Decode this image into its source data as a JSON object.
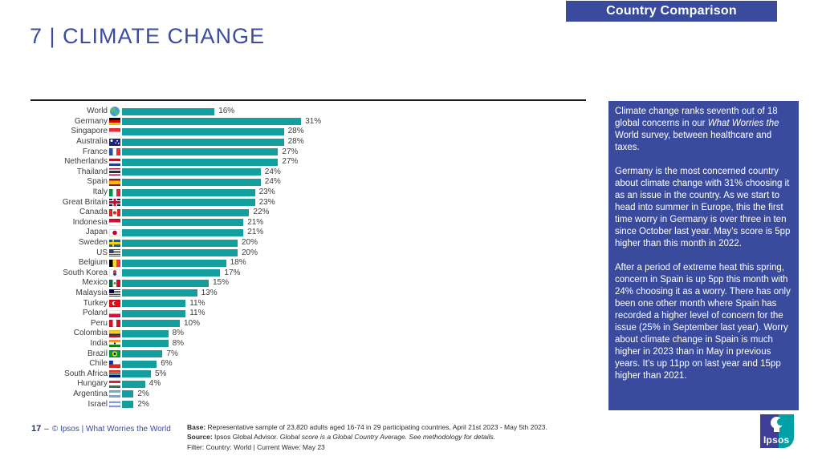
{
  "header": {
    "badge": "Country Comparison",
    "title": "7 | CLIMATE CHANGE"
  },
  "chart_data": {
    "type": "bar",
    "orientation": "horizontal",
    "unit": "%",
    "value_labels": true,
    "xlim": [
      0,
      33
    ],
    "grid": false,
    "bar_color": "#149E9E",
    "categories": [
      "World",
      "Germany",
      "Singapore",
      "Australia",
      "France",
      "Netherlands",
      "Thailand",
      "Spain",
      "Italy",
      "Great Britain",
      "Canada",
      "Indonesia",
      "Japan",
      "Sweden",
      "US",
      "Belgium",
      "South Korea",
      "Mexico",
      "Malaysia",
      "Turkey",
      "Poland",
      "Peru",
      "Colombia",
      "India",
      "Brazil",
      "Chile",
      "South Africa",
      "Hungary",
      "Argentina",
      "Israel"
    ],
    "values": [
      16,
      31,
      28,
      28,
      27,
      27,
      24,
      24,
      23,
      23,
      22,
      21,
      21,
      20,
      20,
      18,
      17,
      15,
      13,
      11,
      11,
      10,
      8,
      8,
      7,
      6,
      5,
      4,
      2,
      2
    ],
    "flags": [
      "world",
      "de",
      "sg",
      "au",
      "fr",
      "nl",
      "th",
      "es",
      "it",
      "gb",
      "ca",
      "id",
      "jp",
      "se",
      "us",
      "be",
      "kr",
      "mx",
      "my",
      "tr",
      "pl",
      "pe",
      "co",
      "in",
      "br",
      "cl",
      "za",
      "hu",
      "ar",
      "il"
    ]
  },
  "commentary": {
    "paragraphs": [
      [
        {
          "t": "Climate change ranks seventh out of 18 global concerns in our "
        },
        {
          "t": "What Worries the",
          "i": true
        },
        {
          "t": " World survey, between healthcare and taxes."
        }
      ],
      [
        {
          "t": "Germany is the most concerned country about climate change with 31% choosing it as an issue in the country. As we start to head into summer in Europe, this the first time worry in Germany is over three in ten since October last year. May’s score is 5pp higher than this month in 2022."
        }
      ],
      [
        {
          "t": "After a period of extreme heat this spring, concern in Spain is up 5pp this month with 24% choosing it as a worry. There has only been one other month where Spain has recorded a higher level of concern for the issue (25% in September last year). Worry about climate change in Spain is much higher in 2023 than in May in previous years. It’s up 11pp on last year and 15pp higher than 2021."
        }
      ]
    ]
  },
  "footer": {
    "page_number": "17",
    "dash": "‒",
    "copyright": "© Ipsos | What Worries the World",
    "notes": [
      [
        {
          "t": "Base:",
          "b": true
        },
        {
          "t": " Representative sample of 23,820 adults aged 16-74 in 29 participating countries, April 21st 2023 - May 5th 2023."
        }
      ],
      [
        {
          "t": "Source:",
          "b": true
        },
        {
          "t": " Ipsos Global Advisor. "
        },
        {
          "t": "Global score is a Global Country Average. See methodology for details.",
          "i": true
        }
      ],
      [
        {
          "t": "Filter: Country: World | Current Wave: May 23"
        }
      ]
    ],
    "logo_text": "Ipsos"
  },
  "colors": {
    "accent_blue": "#3A4B9E",
    "title_blue": "#3A4DA1",
    "bar_teal": "#149E9E"
  }
}
